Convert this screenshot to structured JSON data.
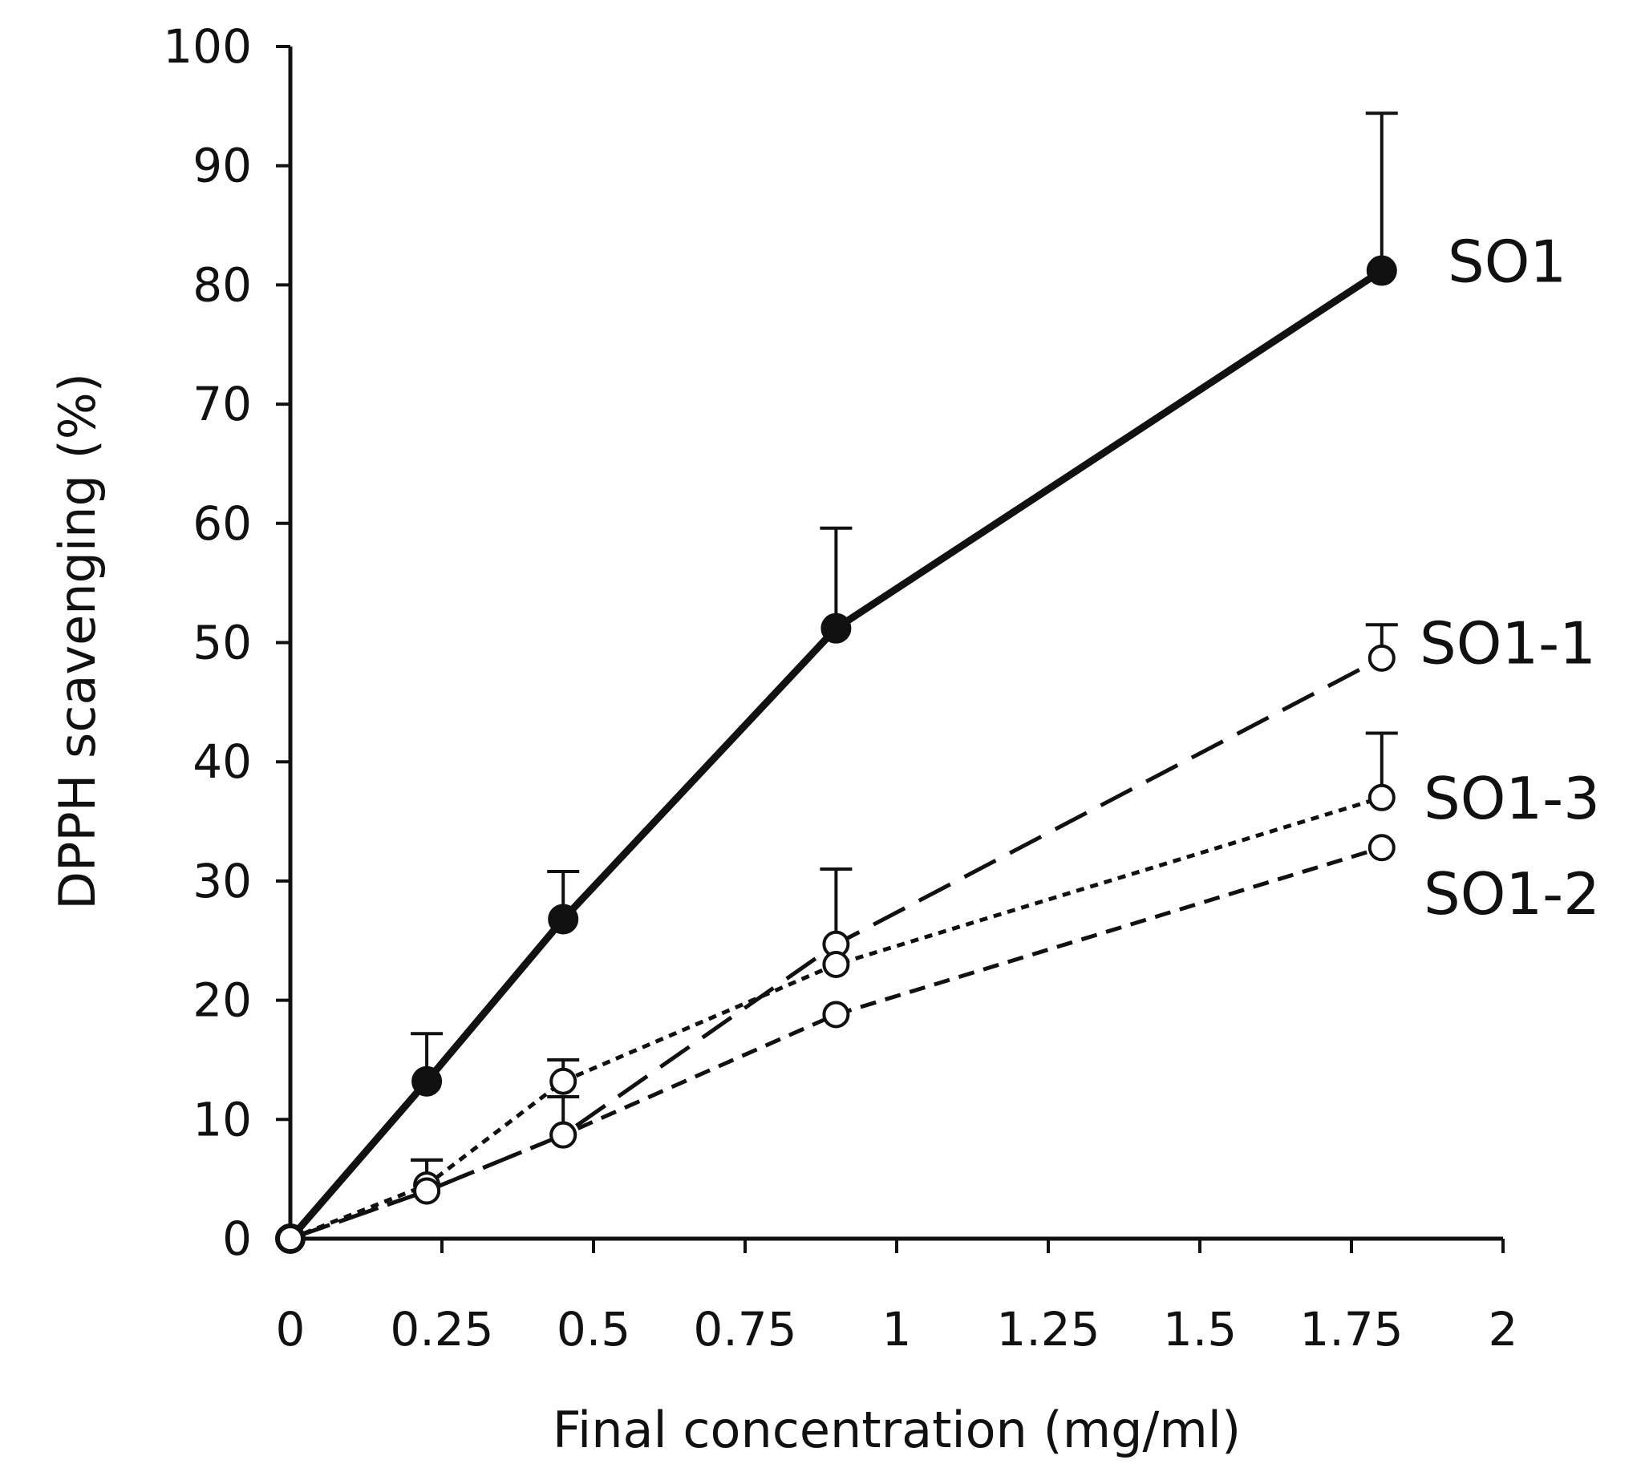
{
  "chart_data": {
    "type": "line",
    "title": "",
    "xlabel": "Final concentration (mg/ml)",
    "ylabel": "DPPH scavenging (%)",
    "xlim": [
      0,
      2
    ],
    "ylim": [
      0,
      100
    ],
    "xticks": [
      0,
      0.25,
      0.5,
      0.75,
      1,
      1.25,
      1.5,
      1.75,
      2
    ],
    "xtick_labels": [
      "0",
      "0.25",
      "0.5",
      "0.75",
      "1",
      "1.25",
      "1.5",
      "1.75",
      "2"
    ],
    "yticks": [
      0,
      10,
      20,
      30,
      40,
      50,
      60,
      70,
      80,
      90,
      100
    ],
    "ytick_labels": [
      "0",
      "10",
      "20",
      "30",
      "40",
      "50",
      "60",
      "70",
      "80",
      "90",
      "100"
    ],
    "grid": false,
    "series": [
      {
        "name": "SO1",
        "x": [
          0,
          0.225,
          0.45,
          0.9,
          1.8
        ],
        "values": [
          0,
          13.2,
          26.8,
          51.2,
          81.2
        ],
        "error": [
          0,
          4.0,
          4.0,
          8.4,
          13.2
        ],
        "marker": "filled",
        "line": "solid"
      },
      {
        "name": "SO1-1",
        "x": [
          0,
          0.225,
          0.45,
          0.9,
          1.8
        ],
        "values": [
          0,
          4.0,
          8.7,
          24.7,
          48.7
        ],
        "error": [
          0,
          2.6,
          3.2,
          6.3,
          2.8
        ],
        "marker": "open",
        "line": "longdash"
      },
      {
        "name": "SO1-3",
        "x": [
          0,
          0.225,
          0.45,
          0.9,
          1.8
        ],
        "values": [
          0,
          4.5,
          13.2,
          23.0,
          37.0
        ],
        "error": [
          0,
          2.1,
          1.8,
          0,
          5.4
        ],
        "marker": "open",
        "line": "dotted"
      },
      {
        "name": "SO1-2",
        "x": [
          0,
          0.225,
          0.45,
          0.9,
          1.8
        ],
        "values": [
          0,
          4.0,
          8.7,
          18.8,
          32.8
        ],
        "error": [
          0,
          0,
          0,
          0,
          0
        ],
        "marker": "open",
        "line": "dashed"
      }
    ],
    "series_label_y": [
      82,
      50,
      37,
      29
    ]
  }
}
